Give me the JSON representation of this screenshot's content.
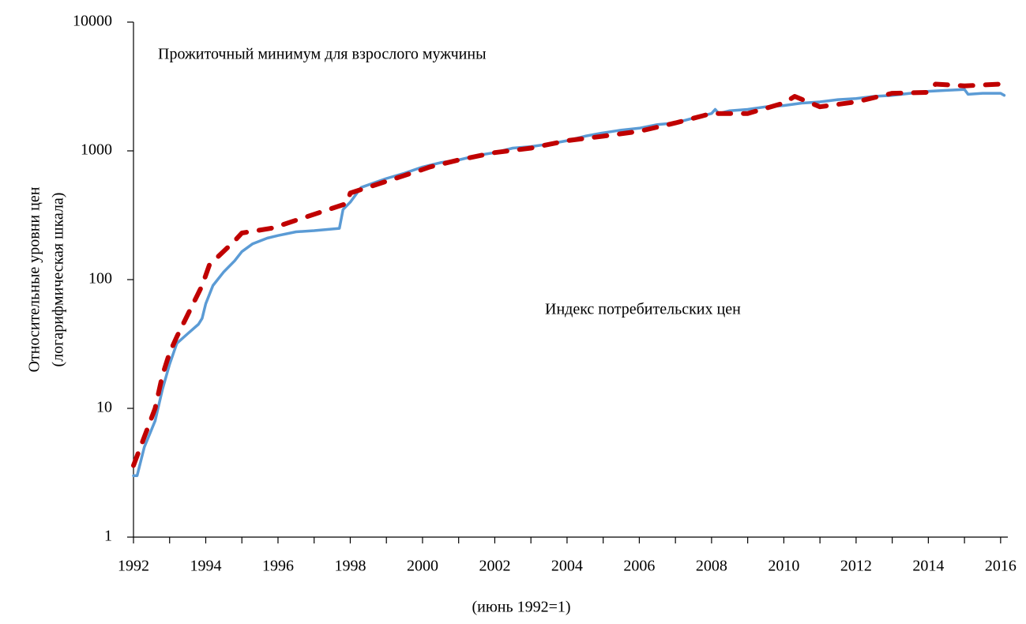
{
  "chart_data": {
    "type": "line",
    "ylabel": [
      "Относительные уровни цен",
      "(логарифмическая шкала)"
    ],
    "xlabel": "(июнь 1992=1)",
    "log_y": true,
    "xlim": [
      1992,
      2016.2
    ],
    "ylim": [
      1,
      10000
    ],
    "xticks": [
      1992,
      1994,
      1996,
      1998,
      2000,
      2002,
      2004,
      2006,
      2008,
      2010,
      2012,
      2014,
      2016
    ],
    "xminorticks": [
      1993,
      1995,
      1997,
      1999,
      2001,
      2003,
      2005,
      2007,
      2009,
      2011,
      2013,
      2015
    ],
    "yticks": [
      1,
      10,
      100,
      1000,
      10000
    ],
    "series": [
      {
        "name": "Индекс потребительских цен",
        "color": "#5b9bd5",
        "dashed": false,
        "x": [
          1992.0,
          1992.1,
          1992.3,
          1992.6,
          1992.8,
          1993.0,
          1993.2,
          1993.5,
          1993.8,
          1993.9,
          1994.0,
          1994.2,
          1994.5,
          1994.8,
          1995.0,
          1995.3,
          1995.7,
          1996.0,
          1996.5,
          1997.0,
          1997.7,
          1997.8,
          1998.0,
          1998.3,
          1998.7,
          1999.0,
          1999.5,
          2000.0,
          2000.5,
          2001.0,
          2001.5,
          2002.0,
          2002.5,
          2003.0,
          2003.5,
          2004.0,
          2004.5,
          2005.0,
          2005.5,
          2006.0,
          2006.5,
          2007.0,
          2007.5,
          2008.0,
          2008.1,
          2008.2,
          2008.5,
          2009.0,
          2009.5,
          2010.0,
          2010.5,
          2011.0,
          2011.5,
          2012.0,
          2012.5,
          2013.0,
          2013.5,
          2014.0,
          2014.5,
          2015.0,
          2015.1,
          2015.5,
          2016.0,
          2016.1
        ],
        "values": [
          3,
          3,
          5,
          8,
          14,
          22,
          32,
          38,
          45,
          50,
          65,
          90,
          115,
          140,
          165,
          190,
          210,
          220,
          235,
          240,
          250,
          350,
          400,
          520,
          570,
          610,
          670,
          750,
          810,
          850,
          920,
          970,
          1050,
          1080,
          1130,
          1200,
          1300,
          1380,
          1450,
          1500,
          1600,
          1650,
          1800,
          1950,
          2100,
          1950,
          2050,
          2100,
          2200,
          2250,
          2350,
          2400,
          2500,
          2550,
          2650,
          2700,
          2800,
          2900,
          2950,
          3000,
          2750,
          2800,
          2800,
          2700
        ]
      },
      {
        "name": "Прожиточный минимум  для взрослого мужчины",
        "color": "#c00000",
        "dashed": true,
        "x": [
          1992.0,
          1992.3,
          1992.6,
          1992.8,
          1993.0,
          1993.2,
          1993.9,
          1994.1,
          1994.8,
          1995.0,
          1995.8,
          1996.0,
          1997.9,
          1998.0,
          1999.9,
          2000.2,
          2001.0,
          2002.0,
          2003.0,
          2004.0,
          2005.0,
          2006.0,
          2007.0,
          2008.0,
          2009.0,
          2010.0,
          2010.3,
          2011.0,
          2012.0,
          2013.0,
          2014.0,
          2014.2,
          2015.0,
          2016.0,
          2016.15
        ],
        "values": [
          3.6,
          6,
          10,
          18,
          27,
          36,
          90,
          130,
          200,
          230,
          250,
          260,
          390,
          470,
          700,
          750,
          850,
          970,
          1050,
          1200,
          1300,
          1420,
          1650,
          1950,
          1950,
          2350,
          2650,
          2200,
          2400,
          2800,
          2850,
          3300,
          3200,
          3300,
          3400
        ]
      }
    ]
  }
}
